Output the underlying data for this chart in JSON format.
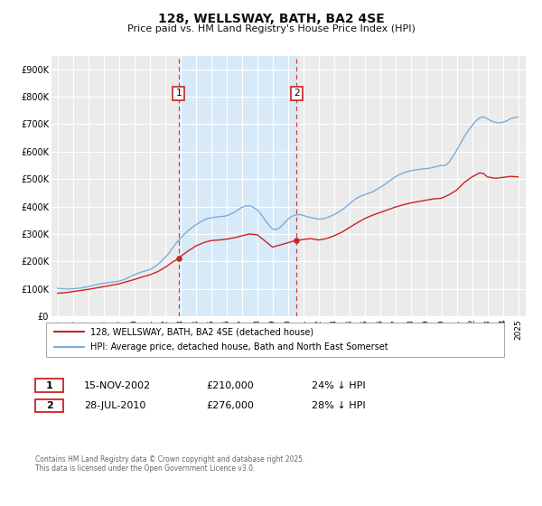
{
  "title": "128, WELLSWAY, BATH, BA2 4SE",
  "subtitle": "Price paid vs. HM Land Registry's House Price Index (HPI)",
  "hpi_color": "#7aaddb",
  "price_color": "#cc2222",
  "marker_color": "#cc2222",
  "background_color": "#ffffff",
  "plot_bg_color": "#ebebeb",
  "shaded_color": "#d8eaf8",
  "grid_color": "#ffffff",
  "ylim": [
    0,
    950000
  ],
  "xlim_start": 1994.6,
  "xlim_end": 2025.5,
  "yticks": [
    0,
    100000,
    200000,
    300000,
    400000,
    500000,
    600000,
    700000,
    800000,
    900000
  ],
  "ytick_labels": [
    "£0",
    "£100K",
    "£200K",
    "£300K",
    "£400K",
    "£500K",
    "£600K",
    "£700K",
    "£800K",
    "£900K"
  ],
  "xticks": [
    1995,
    1996,
    1997,
    1998,
    1999,
    2000,
    2001,
    2002,
    2003,
    2004,
    2005,
    2006,
    2007,
    2008,
    2009,
    2010,
    2011,
    2012,
    2013,
    2014,
    2015,
    2016,
    2017,
    2018,
    2019,
    2020,
    2021,
    2022,
    2023,
    2024,
    2025
  ],
  "sale1_x": 2002.88,
  "sale1_y": 210000,
  "sale1_label": "1",
  "sale1_date": "15-NOV-2002",
  "sale1_price": "£210,000",
  "sale1_hpi": "24% ↓ HPI",
  "sale2_x": 2010.57,
  "sale2_y": 276000,
  "sale2_label": "2",
  "sale2_date": "28-JUL-2010",
  "sale2_price": "£276,000",
  "sale2_hpi": "28% ↓ HPI",
  "legend_line1": "128, WELLSWAY, BATH, BA2 4SE (detached house)",
  "legend_line2": "HPI: Average price, detached house, Bath and North East Somerset",
  "footnote": "Contains HM Land Registry data © Crown copyright and database right 2025.\nThis data is licensed under the Open Government Licence v3.0.",
  "hpi_data": [
    [
      1995.0,
      102000
    ],
    [
      1995.25,
      100500
    ],
    [
      1995.5,
      99500
    ],
    [
      1995.75,
      99000
    ],
    [
      1996.0,
      100000
    ],
    [
      1996.25,
      101500
    ],
    [
      1996.5,
      103000
    ],
    [
      1996.75,
      105500
    ],
    [
      1997.0,
      108000
    ],
    [
      1997.25,
      111500
    ],
    [
      1997.5,
      115000
    ],
    [
      1997.75,
      118000
    ],
    [
      1998.0,
      120000
    ],
    [
      1998.25,
      122000
    ],
    [
      1998.5,
      124000
    ],
    [
      1998.75,
      126000
    ],
    [
      1999.0,
      128000
    ],
    [
      1999.25,
      132000
    ],
    [
      1999.5,
      138000
    ],
    [
      1999.75,
      145000
    ],
    [
      2000.0,
      151000
    ],
    [
      2000.25,
      157000
    ],
    [
      2000.5,
      162000
    ],
    [
      2000.75,
      166000
    ],
    [
      2001.0,
      170000
    ],
    [
      2001.25,
      178000
    ],
    [
      2001.5,
      188000
    ],
    [
      2001.75,
      200000
    ],
    [
      2002.0,
      214000
    ],
    [
      2002.25,
      230000
    ],
    [
      2002.5,
      250000
    ],
    [
      2002.75,
      269000
    ],
    [
      2003.0,
      284000
    ],
    [
      2003.25,
      299000
    ],
    [
      2003.5,
      312000
    ],
    [
      2003.75,
      323000
    ],
    [
      2004.0,
      333000
    ],
    [
      2004.25,
      342000
    ],
    [
      2004.5,
      350000
    ],
    [
      2004.75,
      356000
    ],
    [
      2005.0,
      359000
    ],
    [
      2005.25,
      361000
    ],
    [
      2005.5,
      363000
    ],
    [
      2005.75,
      364000
    ],
    [
      2006.0,
      366000
    ],
    [
      2006.25,
      372000
    ],
    [
      2006.5,
      379000
    ],
    [
      2006.75,
      388000
    ],
    [
      2007.0,
      397000
    ],
    [
      2007.25,
      402000
    ],
    [
      2007.5,
      403000
    ],
    [
      2007.75,
      397000
    ],
    [
      2008.0,
      388000
    ],
    [
      2008.25,
      372000
    ],
    [
      2008.5,
      352000
    ],
    [
      2008.75,
      333000
    ],
    [
      2009.0,
      318000
    ],
    [
      2009.25,
      316000
    ],
    [
      2009.5,
      324000
    ],
    [
      2009.75,
      338000
    ],
    [
      2010.0,
      353000
    ],
    [
      2010.25,
      364000
    ],
    [
      2010.5,
      369000
    ],
    [
      2010.75,
      371000
    ],
    [
      2011.0,
      368000
    ],
    [
      2011.25,
      363000
    ],
    [
      2011.5,
      360000
    ],
    [
      2011.75,
      357000
    ],
    [
      2012.0,
      354000
    ],
    [
      2012.25,
      355000
    ],
    [
      2012.5,
      358000
    ],
    [
      2012.75,
      364000
    ],
    [
      2013.0,
      370000
    ],
    [
      2013.25,
      378000
    ],
    [
      2013.5,
      387000
    ],
    [
      2013.75,
      397000
    ],
    [
      2014.0,
      409000
    ],
    [
      2014.25,
      421000
    ],
    [
      2014.5,
      431000
    ],
    [
      2014.75,
      438000
    ],
    [
      2015.0,
      443000
    ],
    [
      2015.25,
      448000
    ],
    [
      2015.5,
      453000
    ],
    [
      2015.75,
      461000
    ],
    [
      2016.0,
      469000
    ],
    [
      2016.25,
      478000
    ],
    [
      2016.5,
      488000
    ],
    [
      2016.75,
      498000
    ],
    [
      2017.0,
      508000
    ],
    [
      2017.25,
      516000
    ],
    [
      2017.5,
      522000
    ],
    [
      2017.75,
      527000
    ],
    [
      2018.0,
      530000
    ],
    [
      2018.25,
      533000
    ],
    [
      2018.5,
      535000
    ],
    [
      2018.75,
      537000
    ],
    [
      2019.0,
      538000
    ],
    [
      2019.25,
      540000
    ],
    [
      2019.5,
      543000
    ],
    [
      2019.75,
      547000
    ],
    [
      2020.0,
      550000
    ],
    [
      2020.25,
      550000
    ],
    [
      2020.5,
      561000
    ],
    [
      2020.75,
      582000
    ],
    [
      2021.0,
      605000
    ],
    [
      2021.25,
      630000
    ],
    [
      2021.5,
      655000
    ],
    [
      2021.75,
      677000
    ],
    [
      2022.0,
      695000
    ],
    [
      2022.25,
      712000
    ],
    [
      2022.5,
      723000
    ],
    [
      2022.75,
      727000
    ],
    [
      2023.0,
      720000
    ],
    [
      2023.25,
      712000
    ],
    [
      2023.5,
      707000
    ],
    [
      2023.75,
      705000
    ],
    [
      2024.0,
      707000
    ],
    [
      2024.25,
      712000
    ],
    [
      2024.5,
      720000
    ],
    [
      2024.75,
      724000
    ],
    [
      2025.0,
      726000
    ]
  ],
  "price_data": [
    [
      1995.0,
      84000
    ],
    [
      1995.5,
      86000
    ],
    [
      1996.0,
      90000
    ],
    [
      1996.5,
      94000
    ],
    [
      1997.0,
      98000
    ],
    [
      1997.5,
      103000
    ],
    [
      1998.0,
      108000
    ],
    [
      1998.5,
      113000
    ],
    [
      1999.0,
      118000
    ],
    [
      1999.5,
      126000
    ],
    [
      2000.0,
      134000
    ],
    [
      2000.5,
      143000
    ],
    [
      2001.0,
      151000
    ],
    [
      2001.5,
      162000
    ],
    [
      2002.0,
      178000
    ],
    [
      2002.5,
      198000
    ],
    [
      2002.88,
      210000
    ],
    [
      2003.0,
      218000
    ],
    [
      2003.5,
      238000
    ],
    [
      2004.0,
      256000
    ],
    [
      2004.5,
      268000
    ],
    [
      2005.0,
      276000
    ],
    [
      2005.5,
      278000
    ],
    [
      2006.0,
      281000
    ],
    [
      2006.5,
      286000
    ],
    [
      2007.0,
      293000
    ],
    [
      2007.5,
      300000
    ],
    [
      2008.0,
      297000
    ],
    [
      2008.5,
      275000
    ],
    [
      2009.0,
      252000
    ],
    [
      2009.5,
      260000
    ],
    [
      2010.0,
      268000
    ],
    [
      2010.5,
      276000
    ],
    [
      2010.57,
      276000
    ],
    [
      2011.0,
      280000
    ],
    [
      2011.5,
      283000
    ],
    [
      2012.0,
      278000
    ],
    [
      2012.5,
      283000
    ],
    [
      2013.0,
      293000
    ],
    [
      2013.5,
      306000
    ],
    [
      2014.0,
      323000
    ],
    [
      2014.5,
      340000
    ],
    [
      2015.0,
      356000
    ],
    [
      2015.5,
      368000
    ],
    [
      2016.0,
      378000
    ],
    [
      2016.5,
      388000
    ],
    [
      2017.0,
      398000
    ],
    [
      2017.5,
      406000
    ],
    [
      2018.0,
      413000
    ],
    [
      2018.5,
      418000
    ],
    [
      2019.0,
      423000
    ],
    [
      2019.5,
      428000
    ],
    [
      2020.0,
      430000
    ],
    [
      2020.5,
      443000
    ],
    [
      2021.0,
      460000
    ],
    [
      2021.5,
      488000
    ],
    [
      2022.0,
      508000
    ],
    [
      2022.5,
      523000
    ],
    [
      2022.75,
      520000
    ],
    [
      2023.0,
      508000
    ],
    [
      2023.5,
      503000
    ],
    [
      2024.0,
      506000
    ],
    [
      2024.5,
      510000
    ],
    [
      2025.0,
      508000
    ]
  ]
}
